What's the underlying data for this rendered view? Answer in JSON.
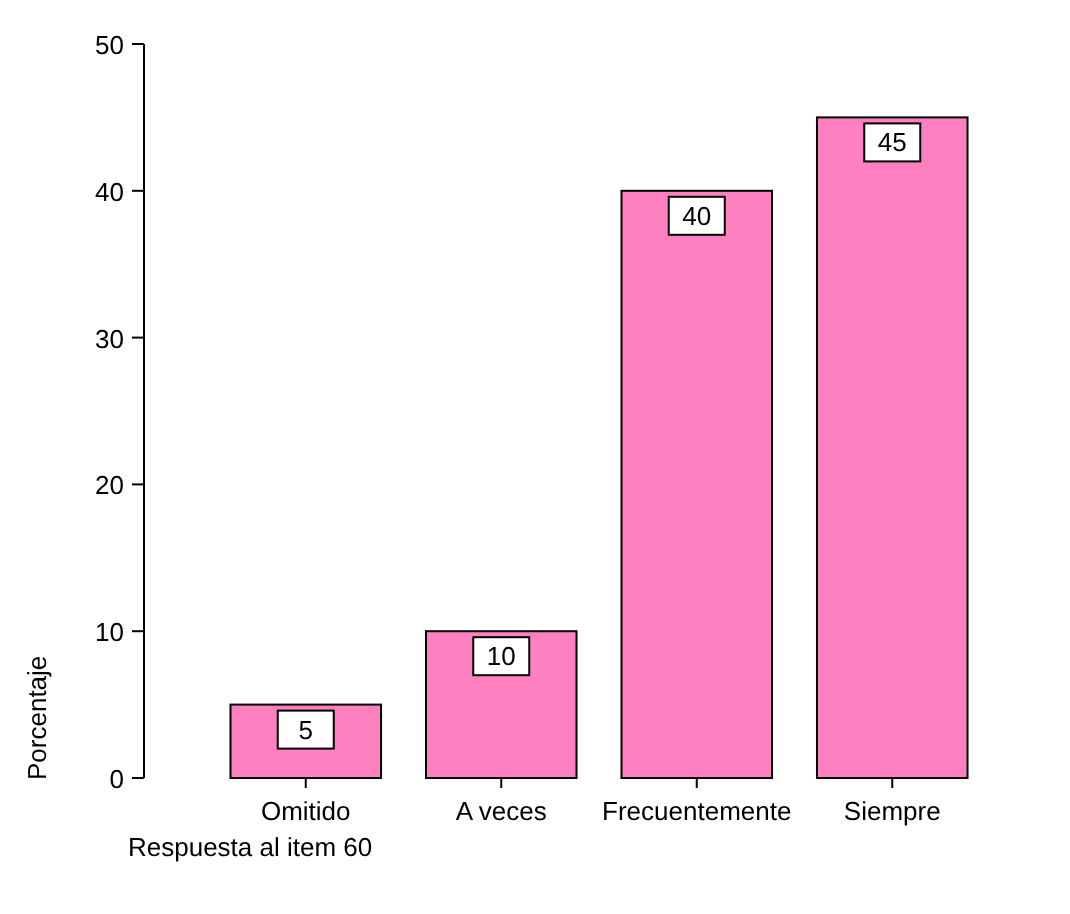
{
  "chart_data": {
    "type": "bar",
    "xlabel": "Respuesta al item 60",
    "ylabel": "Porcentaje",
    "categories": [
      "Omitido",
      "A veces",
      "Frecuentemente",
      "Siempre"
    ],
    "values": [
      5,
      10,
      40,
      45
    ],
    "color": "#ff80c0",
    "data_labels": true,
    "ylim": [
      0,
      50
    ],
    "yticks": [
      0,
      10,
      20,
      30,
      40,
      50
    ],
    "grid": false
  }
}
